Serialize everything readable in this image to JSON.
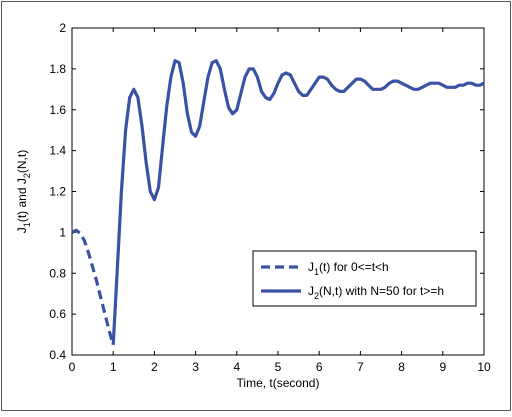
{
  "chart_data": {
    "type": "line",
    "xlabel": "Time, t(second)",
    "ylabel": {
      "parts": [
        "J",
        "1",
        "(t) and J",
        "2",
        "(N,t)"
      ]
    },
    "xlim": [
      0,
      10
    ],
    "ylim": [
      0.4,
      2
    ],
    "x_ticks": [
      "0",
      "1",
      "2",
      "3",
      "4",
      "5",
      "6",
      "7",
      "8",
      "9",
      "10"
    ],
    "y_ticks": [
      "0.4",
      "0.6",
      "0.8",
      "1",
      "1.2",
      "1.4",
      "1.6",
      "1.8",
      "2"
    ],
    "grid": false,
    "legend_position": "lower-right",
    "colors": {
      "series": "#3a52a3",
      "axis": "#000000",
      "frame": "#555555"
    },
    "series": [
      {
        "legend_parts": [
          "J",
          "1",
          "(t) for 0<=t<h"
        ],
        "style": "dashed",
        "x": [
          0,
          0.1,
          0.2,
          0.3,
          0.4,
          0.5,
          0.6,
          0.7,
          0.8,
          0.9,
          1.0
        ],
        "y": [
          1.0,
          1.01,
          0.995,
          0.96,
          0.9,
          0.83,
          0.76,
          0.68,
          0.6,
          0.52,
          0.45
        ]
      },
      {
        "legend_parts": [
          "J",
          "2",
          "(N,t) with N=50 for t>=h"
        ],
        "style": "solid",
        "x": [
          1.0,
          1.1,
          1.2,
          1.3,
          1.4,
          1.5,
          1.6,
          1.7,
          1.8,
          1.9,
          2.0,
          2.1,
          2.2,
          2.3,
          2.4,
          2.5,
          2.6,
          2.7,
          2.8,
          2.9,
          3.0,
          3.1,
          3.2,
          3.3,
          3.4,
          3.5,
          3.6,
          3.7,
          3.8,
          3.9,
          4.0,
          4.1,
          4.2,
          4.3,
          4.4,
          4.5,
          4.6,
          4.7,
          4.8,
          4.9,
          5.0,
          5.1,
          5.2,
          5.3,
          5.4,
          5.5,
          5.6,
          5.7,
          5.8,
          5.9,
          6.0,
          6.1,
          6.2,
          6.3,
          6.4,
          6.5,
          6.6,
          6.7,
          6.8,
          6.9,
          7.0,
          7.1,
          7.2,
          7.3,
          7.4,
          7.5,
          7.6,
          7.7,
          7.8,
          7.9,
          8.0,
          8.1,
          8.2,
          8.3,
          8.4,
          8.5,
          8.6,
          8.7,
          8.8,
          8.9,
          9.0,
          9.1,
          9.2,
          9.3,
          9.4,
          9.5,
          9.6,
          9.7,
          9.8,
          9.9,
          10.0
        ],
        "y": [
          0.45,
          0.82,
          1.2,
          1.5,
          1.66,
          1.7,
          1.66,
          1.52,
          1.34,
          1.2,
          1.16,
          1.22,
          1.42,
          1.62,
          1.76,
          1.84,
          1.83,
          1.73,
          1.58,
          1.49,
          1.47,
          1.52,
          1.64,
          1.76,
          1.83,
          1.84,
          1.8,
          1.7,
          1.61,
          1.58,
          1.6,
          1.68,
          1.76,
          1.8,
          1.8,
          1.76,
          1.69,
          1.66,
          1.65,
          1.68,
          1.73,
          1.77,
          1.78,
          1.77,
          1.73,
          1.69,
          1.67,
          1.67,
          1.7,
          1.73,
          1.76,
          1.76,
          1.75,
          1.72,
          1.7,
          1.69,
          1.69,
          1.71,
          1.73,
          1.75,
          1.75,
          1.74,
          1.72,
          1.7,
          1.7,
          1.7,
          1.71,
          1.73,
          1.74,
          1.74,
          1.73,
          1.72,
          1.71,
          1.7,
          1.7,
          1.71,
          1.72,
          1.73,
          1.73,
          1.73,
          1.72,
          1.71,
          1.71,
          1.71,
          1.72,
          1.72,
          1.73,
          1.73,
          1.72,
          1.72,
          1.73
        ]
      }
    ]
  }
}
